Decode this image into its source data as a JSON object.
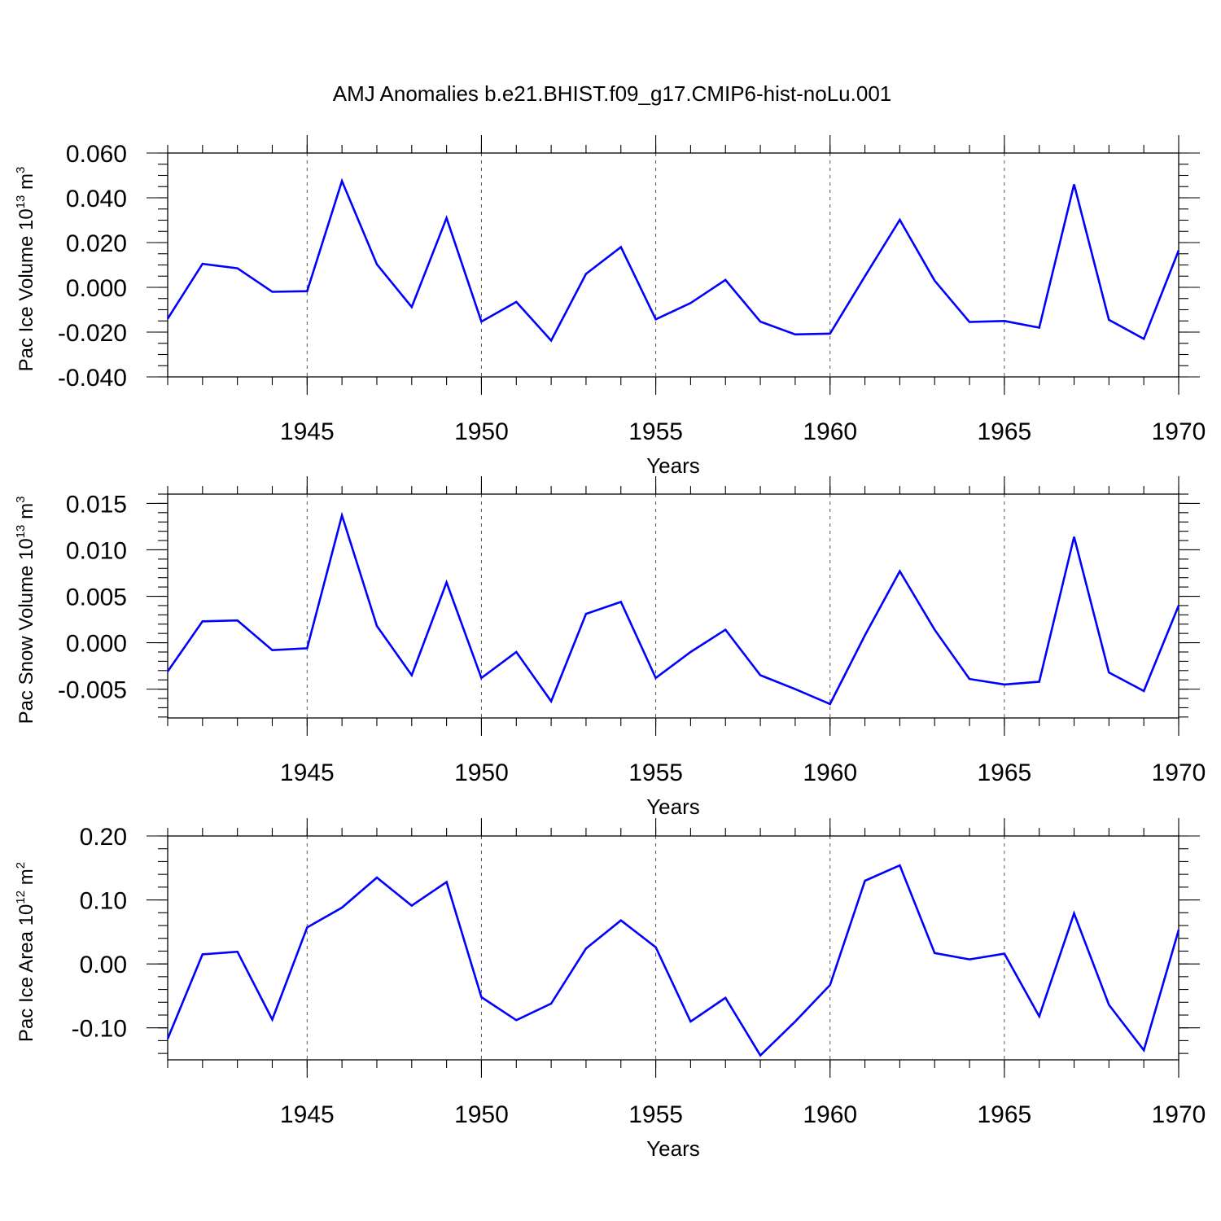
{
  "title": "AMJ Anomalies b.e21.BHIST.f09_g17.CMIP6-hist-noLu.001",
  "chart_data": [
    {
      "type": "line",
      "title": "AMJ Anomalies b.e21.BHIST.f09_g17.CMIP6-hist-noLu.001",
      "ylabel": "Pac Ice Volume 10",
      "ylabel_exp": "13",
      "ylabel_unit": " m",
      "ylabel_unit_exp": "3",
      "xlabel": "Years",
      "xlim": [
        1941,
        1970
      ],
      "ylim": [
        -0.04,
        0.06
      ],
      "x_ticks": [
        1945,
        1950,
        1955,
        1960,
        1965,
        1970
      ],
      "x_tick_labels": [
        "1945",
        "1950",
        "1955",
        "1960",
        "1965",
        "1970"
      ],
      "y_ticks": [
        -0.04,
        -0.02,
        0.0,
        0.02,
        0.04,
        0.06
      ],
      "y_tick_labels": [
        "-0.040",
        "-0.020",
        "0.000",
        "0.020",
        "0.040",
        "0.060"
      ],
      "y_minor_step": 0.005,
      "grid": "vertical dashed at major x ticks",
      "color": "#0000ff",
      "x": [
        1941,
        1942,
        1943,
        1944,
        1945,
        1946,
        1947,
        1948,
        1949,
        1950,
        1951,
        1952,
        1953,
        1954,
        1955,
        1956,
        1957,
        1958,
        1959,
        1960,
        1961,
        1962,
        1963,
        1964,
        1965,
        1966,
        1967,
        1968,
        1969,
        1970
      ],
      "values": [
        -0.014,
        0.0105,
        0.0085,
        -0.002,
        -0.0017,
        0.0475,
        0.0103,
        -0.0088,
        0.031,
        -0.0153,
        -0.0065,
        -0.0238,
        0.006,
        0.018,
        -0.0143,
        -0.007,
        0.0033,
        -0.0153,
        -0.021,
        -0.0207,
        0.005,
        0.0302,
        0.003,
        -0.0155,
        -0.015,
        -0.018,
        0.046,
        -0.0145,
        -0.023,
        0.0165
      ]
    },
    {
      "type": "line",
      "ylabel": "Pac Snow Volume 10",
      "ylabel_exp": "13",
      "ylabel_unit": " m",
      "ylabel_unit_exp": "3",
      "xlabel": "Years",
      "xlim": [
        1941,
        1970
      ],
      "ylim": [
        -0.0081,
        0.016
      ],
      "x_ticks": [
        1945,
        1950,
        1955,
        1960,
        1965,
        1970
      ],
      "x_tick_labels": [
        "1945",
        "1950",
        "1955",
        "1960",
        "1965",
        "1970"
      ],
      "y_ticks": [
        -0.005,
        0.0,
        0.005,
        0.01,
        0.015
      ],
      "y_tick_labels": [
        "-0.005",
        "0.000",
        "0.005",
        "0.010",
        "0.015"
      ],
      "y_minor_step": 0.001,
      "grid": "vertical dashed at major x ticks",
      "color": "#0000ff",
      "x": [
        1941,
        1942,
        1943,
        1944,
        1945,
        1946,
        1947,
        1948,
        1949,
        1950,
        1951,
        1952,
        1953,
        1954,
        1955,
        1956,
        1957,
        1958,
        1959,
        1960,
        1961,
        1962,
        1963,
        1964,
        1965,
        1966,
        1967,
        1968,
        1969,
        1970
      ],
      "values": [
        -0.0031,
        0.0023,
        0.0024,
        -0.0008,
        -0.0006,
        0.0137,
        0.0018,
        -0.0035,
        0.0065,
        -0.0038,
        -0.001,
        -0.0063,
        0.0031,
        0.0044,
        -0.0038,
        -0.001,
        0.0014,
        -0.0035,
        -0.005,
        -0.0066,
        0.0008,
        0.0077,
        0.0014,
        -0.0039,
        -0.0045,
        -0.0042,
        0.0114,
        -0.0032,
        -0.0052,
        0.004
      ]
    },
    {
      "type": "line",
      "ylabel": "Pac Ice Area 10",
      "ylabel_exp": "12",
      "ylabel_unit": " m",
      "ylabel_unit_exp": "2",
      "xlabel": "Years",
      "xlim": [
        1941,
        1970
      ],
      "ylim": [
        -0.15,
        0.2
      ],
      "x_ticks": [
        1945,
        1950,
        1955,
        1960,
        1965,
        1970
      ],
      "x_tick_labels": [
        "1945",
        "1950",
        "1955",
        "1960",
        "1965",
        "1970"
      ],
      "y_ticks": [
        -0.1,
        0.0,
        0.1,
        0.2
      ],
      "y_tick_labels": [
        "-0.10",
        "0.00",
        "0.10",
        "0.20"
      ],
      "y_minor_step": 0.02,
      "grid": "vertical dashed at major x ticks",
      "color": "#0000ff",
      "x": [
        1941,
        1942,
        1943,
        1944,
        1945,
        1946,
        1947,
        1948,
        1949,
        1950,
        1951,
        1952,
        1953,
        1954,
        1955,
        1956,
        1957,
        1958,
        1959,
        1960,
        1961,
        1962,
        1963,
        1964,
        1965,
        1966,
        1967,
        1968,
        1969,
        1970
      ],
      "values": [
        -0.117,
        0.015,
        0.019,
        -0.087,
        0.057,
        0.088,
        0.135,
        0.091,
        0.128,
        -0.052,
        -0.088,
        -0.062,
        0.024,
        0.068,
        0.026,
        -0.09,
        -0.053,
        -0.143,
        -0.09,
        -0.033,
        0.13,
        0.154,
        0.017,
        0.007,
        0.016,
        -0.082,
        0.079,
        -0.064,
        -0.135,
        0.053
      ]
    }
  ]
}
